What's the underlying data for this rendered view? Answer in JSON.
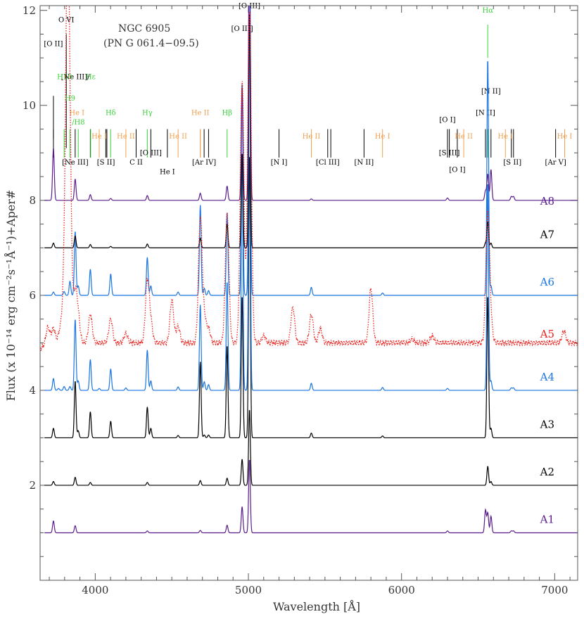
{
  "chart_data": {
    "type": "line",
    "title": "NGC 6905",
    "subtitle": "(PN G 061.4−09.5)",
    "xlabel": "Wavelength [Å]",
    "ylabel": "Flux (x 10⁻¹⁴ erg cm⁻²s⁻¹Å⁻¹)+Aper#",
    "xlim": [
      3640,
      7150
    ],
    "ylim": [
      0,
      12.1
    ],
    "x_ticks": [
      {
        "value": 4000,
        "label": "4000"
      },
      {
        "value": 5000,
        "label": "5000"
      },
      {
        "value": 6000,
        "label": "6000"
      },
      {
        "value": 7000,
        "label": "7000"
      }
    ],
    "y_ticks": [
      {
        "value": 2,
        "label": "2"
      },
      {
        "value": 4,
        "label": "4"
      },
      {
        "value": 6,
        "label": "6"
      },
      {
        "value": 8,
        "label": "8"
      },
      {
        "value": 10,
        "label": "10"
      },
      {
        "value": 12,
        "label": "12"
      }
    ],
    "grid": false,
    "colors": {
      "black": "#000000",
      "purple": "#5a1e8c",
      "blue": "#1a75e0",
      "red": "#e8231f",
      "green": "#3cd23c",
      "orange": "#f0a050",
      "frame": "#555555"
    },
    "series": [
      {
        "name": "A1",
        "offset": 1,
        "color": "#5a1e8c",
        "style": "solid",
        "label_y": 1.0,
        "lines": [
          [
            3727,
            0.25
          ],
          [
            3869,
            0.15
          ],
          [
            4340,
            0.04
          ],
          [
            4686,
            0.05
          ],
          [
            4861,
            0.16
          ],
          [
            4959,
            0.55
          ],
          [
            5007,
            1.55
          ],
          [
            6300,
            0.04
          ],
          [
            6548,
            0.48
          ],
          [
            6563,
            0.42
          ],
          [
            6584,
            0.35
          ],
          [
            6717,
            0.04
          ],
          [
            6731,
            0.04
          ]
        ]
      },
      {
        "name": "A2",
        "offset": 2,
        "color": "#000000",
        "style": "solid",
        "label_y": 2.0,
        "lines": [
          [
            3727,
            0.08
          ],
          [
            3869,
            0.17
          ],
          [
            3968,
            0.06
          ],
          [
            4340,
            0.06
          ],
          [
            4686,
            0.1
          ],
          [
            4861,
            0.15
          ],
          [
            4959,
            0.55
          ],
          [
            5007,
            1.6
          ],
          [
            6563,
            0.4
          ],
          [
            6584,
            0.08
          ]
        ]
      },
      {
        "name": "A3",
        "offset": 3,
        "color": "#000000",
        "style": "solid",
        "label_y": 3.0,
        "lines": [
          [
            3727,
            0.2
          ],
          [
            3869,
            1.2
          ],
          [
            3889,
            0.15
          ],
          [
            3968,
            0.55
          ],
          [
            4101,
            0.35
          ],
          [
            4340,
            0.65
          ],
          [
            4363,
            0.2
          ],
          [
            4541,
            0.05
          ],
          [
            4686,
            1.6
          ],
          [
            4712,
            0.06
          ],
          [
            4740,
            0.06
          ],
          [
            4861,
            1.95
          ],
          [
            4959,
            3.0
          ],
          [
            5007,
            6.0
          ],
          [
            5411,
            0.1
          ],
          [
            5876,
            0.04
          ],
          [
            6563,
            3.0
          ],
          [
            6584,
            0.2
          ]
        ]
      },
      {
        "name": "A4",
        "offset": 4,
        "color": "#1a75e0",
        "style": "solid",
        "label_y": 4.0,
        "lines": [
          [
            3727,
            0.25
          ],
          [
            3760,
            0.04
          ],
          [
            3797,
            0.08
          ],
          [
            3835,
            0.08
          ],
          [
            3869,
            1.5
          ],
          [
            3889,
            0.2
          ],
          [
            3968,
            0.65
          ],
          [
            4026,
            0.04
          ],
          [
            4101,
            0.45
          ],
          [
            4200,
            0.05
          ],
          [
            4340,
            0.85
          ],
          [
            4363,
            0.2
          ],
          [
            4541,
            0.07
          ],
          [
            4686,
            1.8
          ],
          [
            4712,
            0.18
          ],
          [
            4740,
            0.12
          ],
          [
            4861,
            2.3
          ],
          [
            4959,
            5.0
          ],
          [
            5007,
            8.0
          ],
          [
            5411,
            0.15
          ],
          [
            5876,
            0.06
          ],
          [
            6300,
            0.04
          ],
          [
            6563,
            4.4
          ],
          [
            6584,
            0.2
          ],
          [
            6717,
            0.05
          ],
          [
            6731,
            0.05
          ]
        ]
      },
      {
        "name": "A5",
        "offset": 5,
        "color": "#e8231f",
        "style": "dotted",
        "label_y": 4.9,
        "lines": [
          [
            3690,
            0.35
          ],
          [
            3727,
            0.3
          ],
          [
            3770,
            0.25
          ],
          [
            3797,
            1.1
          ],
          [
            3819,
            7.5
          ],
          [
            3835,
            2.5
          ],
          [
            3869,
            1.0
          ],
          [
            3889,
            0.5
          ],
          [
            3968,
            0.6
          ],
          [
            4101,
            0.5
          ],
          [
            4200,
            0.2
          ],
          [
            4340,
            1.3
          ],
          [
            4363,
            0.4
          ],
          [
            4500,
            0.9
          ],
          [
            4541,
            0.35
          ],
          [
            4686,
            2.6
          ],
          [
            4712,
            0.5
          ],
          [
            4740,
            0.3
          ],
          [
            4861,
            2.7
          ],
          [
            4959,
            5.5
          ],
          [
            5007,
            7.0
          ],
          [
            5100,
            0.15
          ],
          [
            5290,
            0.75
          ],
          [
            5411,
            0.6
          ],
          [
            5470,
            0.3
          ],
          [
            5800,
            1.15
          ],
          [
            6070,
            0.08
          ],
          [
            6200,
            0.15
          ],
          [
            6563,
            2.7
          ],
          [
            6584,
            0.3
          ],
          [
            7060,
            0.25
          ]
        ]
      },
      {
        "name": "A6",
        "offset": 6,
        "color": "#1a75e0",
        "style": "solid",
        "label_y": 6.0,
        "lines": [
          [
            3727,
            0.07
          ],
          [
            3797,
            0.08
          ],
          [
            3835,
            0.3
          ],
          [
            3869,
            1.35
          ],
          [
            3889,
            0.2
          ],
          [
            3968,
            0.55
          ],
          [
            4101,
            0.45
          ],
          [
            4340,
            0.8
          ],
          [
            4363,
            0.2
          ],
          [
            4541,
            0.07
          ],
          [
            4686,
            1.9
          ],
          [
            4712,
            0.15
          ],
          [
            4740,
            0.1
          ],
          [
            4861,
            1.75
          ],
          [
            4959,
            4.5
          ],
          [
            5007,
            7.5
          ],
          [
            5411,
            0.17
          ],
          [
            5876,
            0.05
          ],
          [
            6563,
            5.0
          ],
          [
            6584,
            0.2
          ]
        ]
      },
      {
        "name": "A7",
        "offset": 7,
        "color": "#000000",
        "style": "solid",
        "label_y": 7.0,
        "lines": [
          [
            3727,
            0.1
          ],
          [
            3869,
            0.25
          ],
          [
            3968,
            0.07
          ],
          [
            4101,
            0.03
          ],
          [
            4340,
            0.08
          ],
          [
            4686,
            0.2
          ],
          [
            4861,
            0.5
          ],
          [
            4959,
            2.0
          ],
          [
            5007,
            5.0
          ],
          [
            6548,
            0.1
          ],
          [
            6563,
            0.55
          ],
          [
            6584,
            0.1
          ]
        ]
      },
      {
        "name": "A8",
        "offset": 8,
        "color": "#5a1e8c",
        "style": "solid",
        "label_y": 7.7,
        "lines": [
          [
            3727,
            1.1
          ],
          [
            3869,
            0.45
          ],
          [
            3968,
            0.12
          ],
          [
            4101,
            0.04
          ],
          [
            4340,
            0.1
          ],
          [
            4686,
            0.15
          ],
          [
            4861,
            0.3
          ],
          [
            4959,
            2.4
          ],
          [
            5007,
            6.0
          ],
          [
            5411,
            0.03
          ],
          [
            6300,
            0.05
          ],
          [
            6548,
            0.2
          ],
          [
            6563,
            0.55
          ],
          [
            6584,
            0.65
          ],
          [
            6717,
            0.08
          ],
          [
            6731,
            0.08
          ]
        ]
      }
    ],
    "line_ids": [
      {
        "label": "[O II]",
        "wl": 3727,
        "color": "#000000",
        "text_y": 11.25,
        "bar": [
          9.3,
          10.2
        ]
      },
      {
        "label": "O VI",
        "wl": 3811,
        "color": "#000000",
        "text_y": 11.75,
        "bar": [
          9.1,
          11.5
        ]
      },
      {
        "label": "[O III]",
        "wl": 4959,
        "color": "#000000",
        "text_y": 11.57
      },
      {
        "label": "[O III]",
        "wl": 5007,
        "color": "#000000",
        "text_y": 12.05
      },
      {
        "label": "Hα",
        "wl": 6563,
        "color": "#3cd23c",
        "text_y": 11.95,
        "bar": [
          11.0,
          11.7
        ]
      },
      {
        "label": "Hε",
        "wl": 3970,
        "color": "#3cd23c",
        "text_y": 10.55
      },
      {
        "label": "[Ne III]/",
        "wl": 3870,
        "color": "#000000",
        "text_y": 10.55
      },
      {
        "label": "H10",
        "wl": 3800,
        "color": "#3cd23c",
        "text_y": 10.55
      },
      {
        "label": "H9",
        "wl": 3835,
        "color": "#3cd23c",
        "text_y": 10.1
      },
      {
        "label": "He I",
        "wl": 3880,
        "color": "#f0a050",
        "text_y": 9.8
      },
      {
        "label": "/H8",
        "wl": 3890,
        "color": "#3cd23c",
        "text_y": 9.6
      },
      {
        "label": "Hδ",
        "wl": 4101,
        "color": "#3cd23c",
        "text_y": 9.8
      },
      {
        "label": "Hγ",
        "wl": 4340,
        "color": "#3cd23c",
        "text_y": 9.8
      },
      {
        "label": "He II",
        "wl": 4686,
        "color": "#f0a050",
        "text_y": 9.8,
        "bar": [
          8.9,
          9.5
        ]
      },
      {
        "label": "Hβ",
        "wl": 4861,
        "color": "#3cd23c",
        "text_y": 9.8
      },
      {
        "label": "He I",
        "wl": 4026,
        "color": "#f0a050",
        "text_y": 9.3
      },
      {
        "label": "He II",
        "wl": 4200,
        "color": "#f0a050",
        "text_y": 9.3
      },
      {
        "label": "He II",
        "wl": 4541,
        "color": "#f0a050",
        "text_y": 9.3
      },
      {
        "label": "[Ne III]",
        "wl": 3869,
        "color": "#000000",
        "text_y": 8.75
      },
      {
        "label": "[S II]",
        "wl": 4070,
        "color": "#000000",
        "text_y": 8.75
      },
      {
        "label": "C II",
        "wl": 4267,
        "color": "#000000",
        "text_y": 8.75
      },
      {
        "label": "[O III]",
        "wl": 4363,
        "color": "#000000",
        "text_y": 8.95
      },
      {
        "label": "He I",
        "wl": 4471,
        "color": "#000000",
        "text_y": 8.55
      },
      {
        "label": "[Ar IV]",
        "wl": 4711,
        "color": "#000000",
        "text_y": 8.75
      },
      {
        "label": "[N I]",
        "wl": 5200,
        "color": "#000000",
        "text_y": 8.75
      },
      {
        "label": "He II",
        "wl": 5411,
        "color": "#f0a050",
        "text_y": 9.3
      },
      {
        "label": "[Cl III]",
        "wl": 5518,
        "color": "#000000",
        "text_y": 8.75
      },
      {
        "label": "[N II]",
        "wl": 5755,
        "color": "#000000",
        "text_y": 8.75
      },
      {
        "label": "He I",
        "wl": 5876,
        "color": "#f0a050",
        "text_y": 9.3
      },
      {
        "label": "[O I]",
        "wl": 6300,
        "color": "#000000",
        "text_y": 9.65
      },
      {
        "label": "[S III]",
        "wl": 6312,
        "color": "#000000",
        "text_y": 8.95
      },
      {
        "label": "[O I]",
        "wl": 6364,
        "color": "#000000",
        "text_y": 8.6
      },
      {
        "label": "He II",
        "wl": 6406,
        "color": "#f0a050",
        "text_y": 9.3
      },
      {
        "label": "[N II]",
        "wl": 6548,
        "color": "#000000",
        "text_y": 9.8
      },
      {
        "label": "[N II]",
        "wl": 6584,
        "color": "#000000",
        "text_y": 10.25
      },
      {
        "label": "He I",
        "wl": 6678,
        "color": "#f0a050",
        "text_y": 9.3
      },
      {
        "label": "[S II]",
        "wl": 6724,
        "color": "#000000",
        "text_y": 8.75
      },
      {
        "label": "[Ar V]",
        "wl": 7006,
        "color": "#000000",
        "text_y": 8.75
      },
      {
        "label": "He I",
        "wl": 7065,
        "color": "#f0a050",
        "text_y": 9.3
      }
    ],
    "marker_lines": [
      {
        "wl": 3727,
        "color": "#000000"
      },
      {
        "wl": 3797,
        "color": "#3cd23c"
      },
      {
        "wl": 3835,
        "color": "#3cd23c"
      },
      {
        "wl": 3869,
        "color": "#000000"
      },
      {
        "wl": 3889,
        "color": "#3cd23c"
      },
      {
        "wl": 3968,
        "color": "#000000"
      },
      {
        "wl": 3970,
        "color": "#3cd23c"
      },
      {
        "wl": 4026,
        "color": "#f0a050"
      },
      {
        "wl": 4069,
        "color": "#000000"
      },
      {
        "wl": 4076,
        "color": "#000000"
      },
      {
        "wl": 4101,
        "color": "#3cd23c"
      },
      {
        "wl": 4200,
        "color": "#f0a050"
      },
      {
        "wl": 4267,
        "color": "#000000"
      },
      {
        "wl": 4340,
        "color": "#3cd23c"
      },
      {
        "wl": 4363,
        "color": "#000000"
      },
      {
        "wl": 4471,
        "color": "#000000"
      },
      {
        "wl": 4541,
        "color": "#f0a050"
      },
      {
        "wl": 4686,
        "color": "#f0a050"
      },
      {
        "wl": 4711,
        "color": "#000000"
      },
      {
        "wl": 4740,
        "color": "#000000"
      },
      {
        "wl": 4861,
        "color": "#3cd23c"
      },
      {
        "wl": 5200,
        "color": "#000000"
      },
      {
        "wl": 5411,
        "color": "#f0a050"
      },
      {
        "wl": 5518,
        "color": "#000000"
      },
      {
        "wl": 5538,
        "color": "#000000"
      },
      {
        "wl": 5755,
        "color": "#000000"
      },
      {
        "wl": 5876,
        "color": "#f0a050"
      },
      {
        "wl": 6300,
        "color": "#000000"
      },
      {
        "wl": 6312,
        "color": "#000000"
      },
      {
        "wl": 6364,
        "color": "#000000"
      },
      {
        "wl": 6406,
        "color": "#f0a050"
      },
      {
        "wl": 6548,
        "color": "#000000"
      },
      {
        "wl": 6563,
        "color": "#3cd23c"
      },
      {
        "wl": 6584,
        "color": "#000000"
      },
      {
        "wl": 6678,
        "color": "#f0a050"
      },
      {
        "wl": 6717,
        "color": "#000000"
      },
      {
        "wl": 6731,
        "color": "#000000"
      },
      {
        "wl": 7006,
        "color": "#000000"
      },
      {
        "wl": 7065,
        "color": "#f0a050"
      }
    ],
    "marker_range": [
      8.9,
      9.5
    ]
  }
}
